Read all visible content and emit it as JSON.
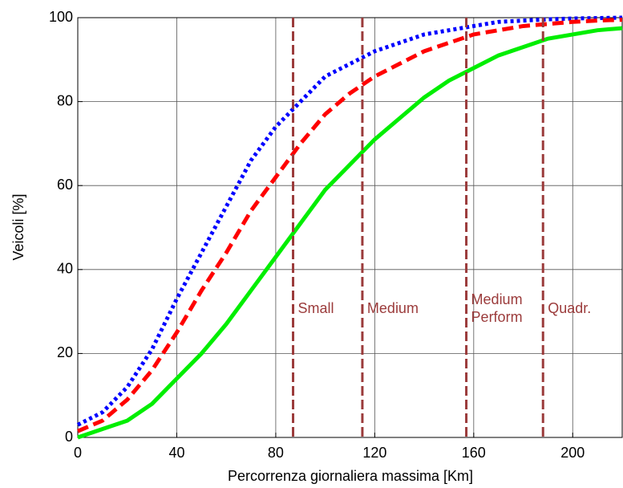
{
  "chart_data": {
    "type": "line",
    "xlabel": "Percorrenza giornaliera massima  [Km]",
    "ylabel": "Veicoli  [%]",
    "x": [
      0,
      10,
      20,
      30,
      40,
      50,
      60,
      70,
      80,
      90,
      100,
      110,
      120,
      130,
      140,
      150,
      160,
      170,
      180,
      190,
      200,
      210,
      220
    ],
    "series": [
      {
        "color": "#0000ff",
        "style": "dotted",
        "values": [
          3,
          6,
          12,
          21,
          33,
          44,
          55,
          66,
          74,
          80,
          86,
          89,
          92,
          94,
          96,
          97,
          98,
          99,
          99.3,
          99.6,
          99.8,
          99.9,
          100
        ]
      },
      {
        "color": "#ff0000",
        "style": "dashed",
        "values": [
          1.5,
          4,
          9,
          16,
          25,
          35,
          44,
          54,
          62,
          70,
          77,
          82,
          86,
          89,
          92,
          94,
          96,
          97,
          98,
          98.5,
          99,
          99.3,
          99.5
        ]
      },
      {
        "color": "#00ee00",
        "style": "solid",
        "values": [
          0,
          2,
          4,
          8,
          14,
          20,
          27,
          35,
          43,
          51,
          59,
          65,
          71,
          76,
          81,
          85,
          88,
          91,
          93,
          95,
          96,
          97,
          97.5
        ]
      }
    ],
    "vlines": [
      {
        "x": 87,
        "label": [
          "Small"
        ]
      },
      {
        "x": 115,
        "label": [
          "Medium"
        ]
      },
      {
        "x": 157,
        "label": [
          "Medium",
          "Perform"
        ]
      },
      {
        "x": 188,
        "label": [
          "Quadr."
        ]
      }
    ],
    "vline_color": "#9b3b3b",
    "xlim": [
      0,
      220
    ],
    "ylim": [
      0,
      100
    ],
    "xticks": [
      0,
      40,
      80,
      120,
      160,
      200
    ],
    "yticks": [
      0,
      20,
      40,
      60,
      80,
      100
    ],
    "grid": true
  }
}
